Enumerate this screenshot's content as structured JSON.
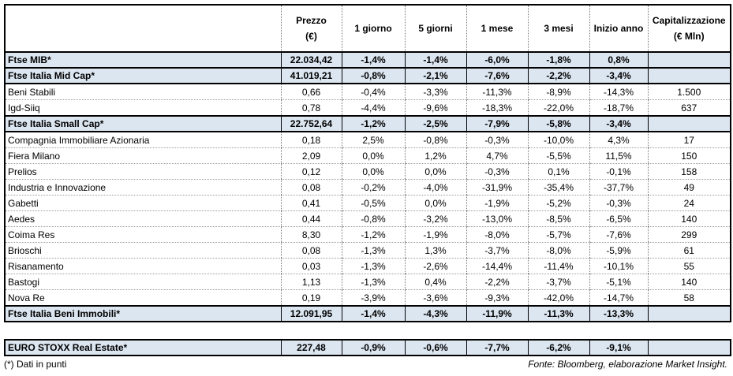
{
  "headers": [
    "",
    "Prezzo\n(€)",
    "1 giorno",
    "5 giorni",
    "1 mese",
    "3 mesi",
    "Inizio anno",
    "Capitalizzazione\n(€ Mln)"
  ],
  "rows": [
    {
      "highlight": true,
      "cells": [
        "Ftse MIB*",
        "22.034,42",
        "-1,4%",
        "-1,4%",
        "-6,0%",
        "-1,8%",
        "0,8%",
        ""
      ]
    },
    {
      "highlight": true,
      "cells": [
        "Ftse Italia Mid Cap*",
        "41.019,21",
        "-0,8%",
        "-2,1%",
        "-7,6%",
        "-2,2%",
        "-3,4%",
        ""
      ]
    },
    {
      "highlight": false,
      "cells": [
        "Beni Stabili",
        "0,66",
        "-0,4%",
        "-3,3%",
        "-11,3%",
        "-8,9%",
        "-14,3%",
        "1.500"
      ]
    },
    {
      "highlight": false,
      "cells": [
        "Igd-Siiq",
        "0,78",
        "-4,4%",
        "-9,6%",
        "-18,3%",
        "-22,0%",
        "-18,7%",
        "637"
      ]
    },
    {
      "highlight": true,
      "cells": [
        "Ftse Italia Small Cap*",
        "22.752,64",
        "-1,2%",
        "-2,5%",
        "-7,9%",
        "-5,8%",
        "-3,4%",
        ""
      ]
    },
    {
      "highlight": false,
      "cells": [
        "Compagnia Immobiliare Azionaria",
        "0,18",
        "2,5%",
        "-0,8%",
        "-0,3%",
        "-10,0%",
        "4,3%",
        "17"
      ]
    },
    {
      "highlight": false,
      "cells": [
        "Fiera Milano",
        "2,09",
        "0,0%",
        "1,2%",
        "4,7%",
        "-5,5%",
        "11,5%",
        "150"
      ]
    },
    {
      "highlight": false,
      "cells": [
        "Prelios",
        "0,12",
        "0,0%",
        "0,0%",
        "-0,3%",
        "0,1%",
        "-0,1%",
        "158"
      ]
    },
    {
      "highlight": false,
      "cells": [
        "Industria e Innovazione",
        "0,08",
        "-0,2%",
        "-4,0%",
        "-31,9%",
        "-35,4%",
        "-37,7%",
        "49"
      ]
    },
    {
      "highlight": false,
      "cells": [
        "Gabetti",
        "0,41",
        "-0,5%",
        "0,0%",
        "-1,9%",
        "-5,2%",
        "-0,3%",
        "24"
      ]
    },
    {
      "highlight": false,
      "cells": [
        "Aedes",
        "0,44",
        "-0,8%",
        "-3,2%",
        "-13,0%",
        "-8,5%",
        "-6,5%",
        "140"
      ]
    },
    {
      "highlight": false,
      "cells": [
        "Coima Res",
        "8,30",
        "-1,2%",
        "-1,9%",
        "-8,0%",
        "-5,7%",
        "-7,6%",
        "299"
      ]
    },
    {
      "highlight": false,
      "cells": [
        "Brioschi",
        "0,08",
        "-1,3%",
        "1,3%",
        "-3,7%",
        "-8,0%",
        "-5,9%",
        "61"
      ]
    },
    {
      "highlight": false,
      "cells": [
        "Risanamento",
        "0,03",
        "-1,3%",
        "-2,6%",
        "-14,4%",
        "-11,4%",
        "-10,1%",
        "55"
      ]
    },
    {
      "highlight": false,
      "cells": [
        "Bastogi",
        "1,13",
        "-1,3%",
        "0,4%",
        "-2,2%",
        "-3,7%",
        "-5,1%",
        "140"
      ]
    },
    {
      "highlight": false,
      "cells": [
        "Nova Re",
        "0,19",
        "-3,9%",
        "-3,6%",
        "-9,3%",
        "-42,0%",
        "-14,7%",
        "58"
      ]
    },
    {
      "highlight": true,
      "cells": [
        "Ftse Italia Beni Immobili*",
        "12.091,95",
        "-1,4%",
        "-4,3%",
        "-11,9%",
        "-11,3%",
        "-13,3%",
        ""
      ]
    }
  ],
  "benchmark": {
    "cells": [
      "EURO STOXX Real Estate*",
      "227,48",
      "-0,9%",
      "-0,6%",
      "-7,7%",
      "-6,2%",
      "-9,1%",
      ""
    ]
  },
  "footer": {
    "note": "(*) Dati in punti",
    "source": "Fonte: Bloomberg, elaborazione Market Insight."
  },
  "colors": {
    "highlight": "#dce6f1",
    "border": "#000000"
  }
}
